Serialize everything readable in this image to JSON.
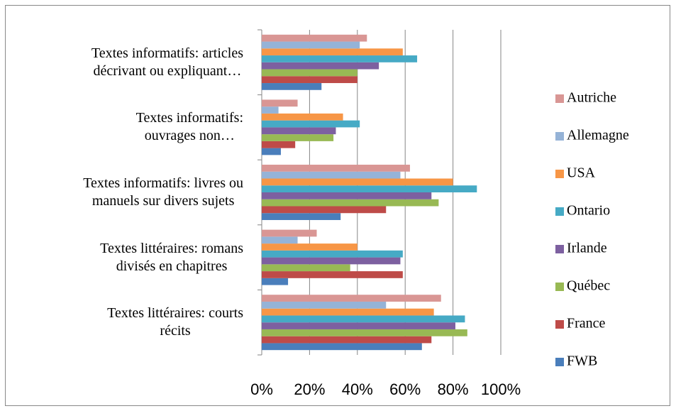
{
  "chart_data": {
    "type": "bar",
    "orientation": "horizontal",
    "categories": [
      "Textes littéraires: courts\nrécits",
      "Textes littéraires: romans\ndivisés en chapitres",
      "Textes informatifs: livres ou\nmanuels sur divers sujets",
      "Textes informatifs:\nouvrages non…",
      "Textes informatifs: articles\ndécrivant ou expliquant…"
    ],
    "series": [
      {
        "name": "FWB",
        "color": "#4a7ebb",
        "values": [
          67,
          11,
          33,
          8,
          25
        ]
      },
      {
        "name": "France",
        "color": "#be4b48",
        "values": [
          71,
          59,
          52,
          14,
          40
        ]
      },
      {
        "name": "Québec",
        "color": "#98b954",
        "values": [
          86,
          37,
          74,
          30,
          40
        ]
      },
      {
        "name": "Irlande",
        "color": "#7d60a0",
        "values": [
          81,
          58,
          71,
          31,
          49
        ]
      },
      {
        "name": "Ontario",
        "color": "#46aac5",
        "values": [
          85,
          59,
          90,
          41,
          65
        ]
      },
      {
        "name": "USA",
        "color": "#f79646",
        "values": [
          72,
          40,
          80,
          34,
          59
        ]
      },
      {
        "name": "Allemagne",
        "color": "#95b3d7",
        "values": [
          52,
          15,
          58,
          7,
          41
        ]
      },
      {
        "name": "Autriche",
        "color": "#d99694",
        "values": [
          75,
          23,
          62,
          15,
          44
        ]
      }
    ],
    "xlim": [
      0,
      100
    ],
    "xticks": [
      {
        "value": 0,
        "label": "0%"
      },
      {
        "value": 20,
        "label": "20%"
      },
      {
        "value": 40,
        "label": "40%"
      },
      {
        "value": 60,
        "label": "60%"
      },
      {
        "value": 80,
        "label": "80%"
      },
      {
        "value": 100,
        "label": "100%"
      }
    ],
    "grid": true,
    "legend": "right"
  }
}
